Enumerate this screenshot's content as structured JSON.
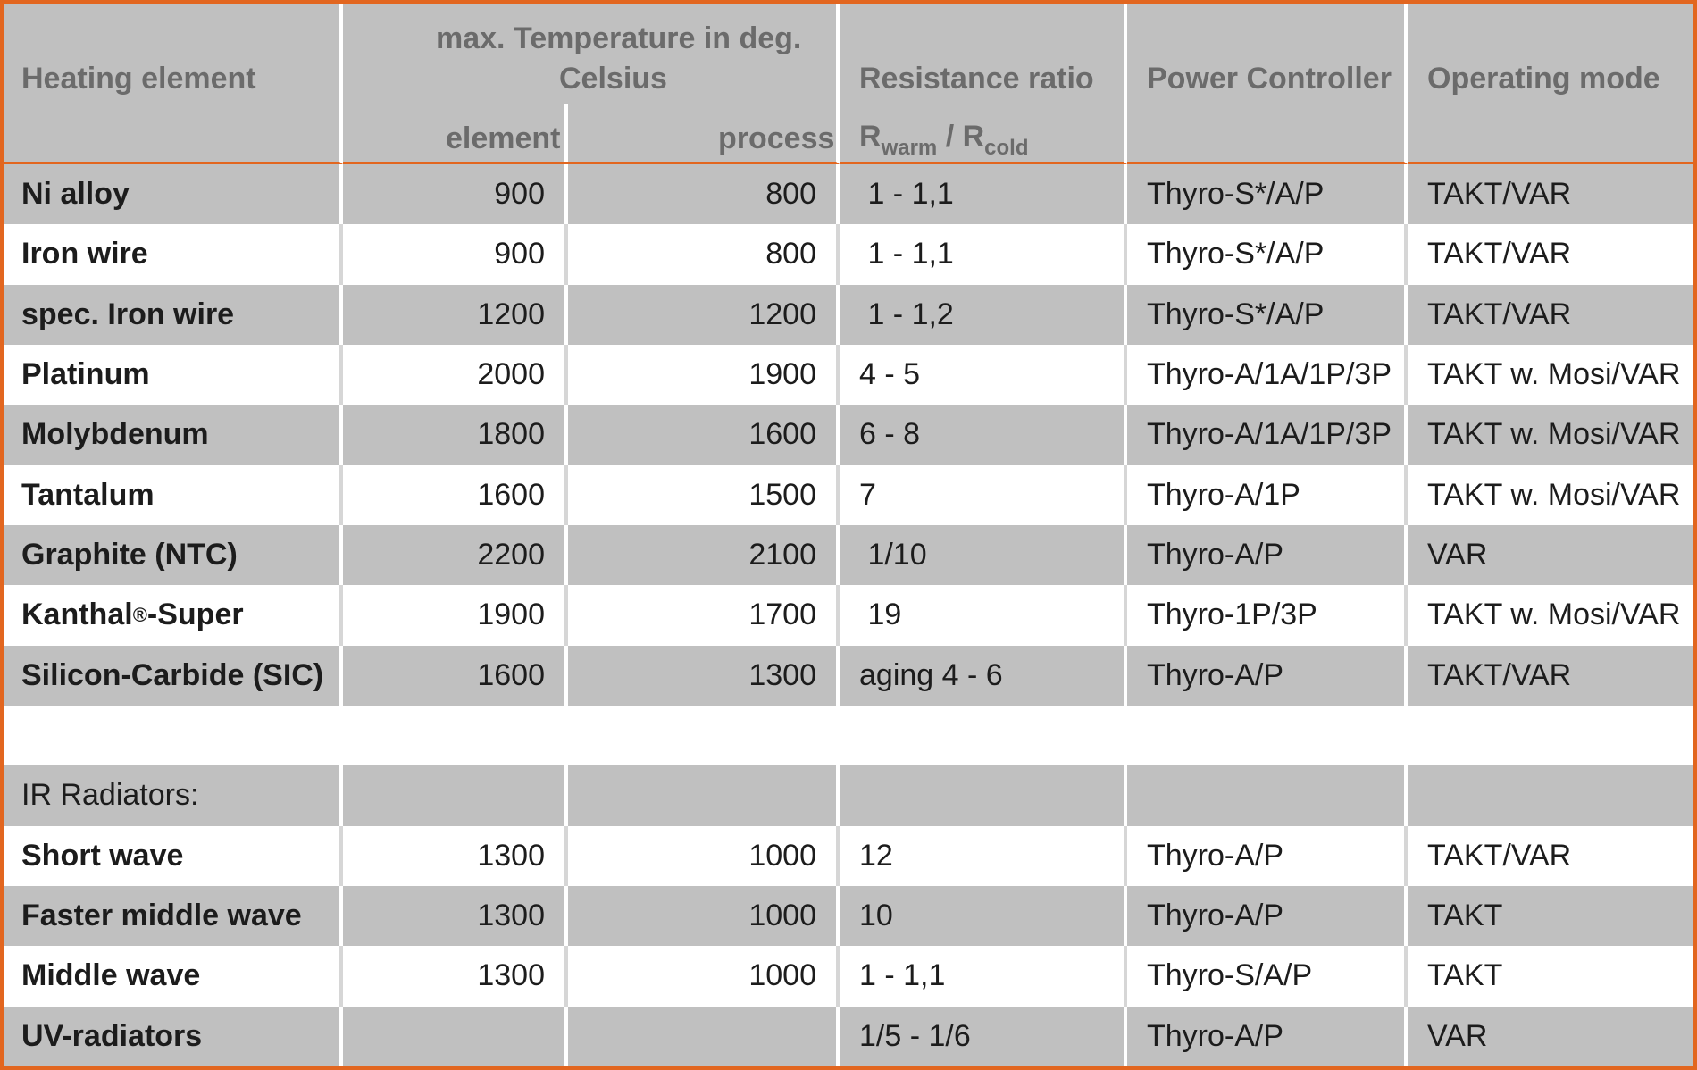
{
  "header": {
    "heating_element": "Heating element",
    "max_temp_line1": "max. Temperature in deg.",
    "max_temp_line2": "Celsius",
    "element": "element",
    "process": "process",
    "resistance_ratio": "Resistance ratio",
    "r_main_1": "R",
    "r_sub_1": "warm",
    "r_sep": " / R",
    "r_sub_2": "cold",
    "power_controller": "Power Controller",
    "operating_mode": "Operating mode"
  },
  "rows": [
    {
      "name": "Ni alloy",
      "element": "900",
      "process": "800",
      "ratio": " 1 - 1,1",
      "controller": "Thyro-S*/A/P",
      "mode": "TAKT/VAR"
    },
    {
      "name": "Iron wire",
      "element": "900",
      "process": "800",
      "ratio": " 1 - 1,1",
      "controller": "Thyro-S*/A/P",
      "mode": "TAKT/VAR"
    },
    {
      "name": "spec. Iron wire",
      "element": "1200",
      "process": "1200",
      "ratio": " 1 - 1,2",
      "controller": "Thyro-S*/A/P",
      "mode": "TAKT/VAR"
    },
    {
      "name": "Platinum",
      "element": "2000",
      "process": "1900",
      "ratio": "4 - 5",
      "controller": "Thyro-A/1A/1P/3P",
      "mode": "TAKT w. Mosi/VAR"
    },
    {
      "name": "Molybdenum",
      "element": "1800",
      "process": "1600",
      "ratio": "6 - 8",
      "controller": "Thyro-A/1A/1P/3P",
      "mode": "TAKT w. Mosi/VAR"
    },
    {
      "name": "Tantalum",
      "element": "1600",
      "process": "1500",
      "ratio": "7",
      "controller": "Thyro-A/1P",
      "mode": "TAKT w. Mosi/VAR"
    },
    {
      "name": "Graphite (NTC)",
      "element": "2200",
      "process": "2100",
      "ratio": " 1/10",
      "controller": "Thyro-A/P",
      "mode": "VAR"
    },
    {
      "name_pre": "Kanthal",
      "name_sup": "®",
      "name_post": "-Super",
      "element": "1900",
      "process": "1700",
      "ratio": " 19",
      "controller": "Thyro-1P/3P",
      "mode": "TAKT w. Mosi/VAR"
    },
    {
      "name": "Silicon-Carbide (SIC)",
      "element": "1600",
      "process": "1300",
      "ratio": "aging 4 - 6",
      "controller": "Thyro-A/P",
      "mode": "TAKT/VAR"
    }
  ],
  "ir_section": {
    "label": "IR Radiators:"
  },
  "ir_rows": [
    {
      "name": "Short wave",
      "element": "1300",
      "process": "1000",
      "ratio": "12",
      "controller": "Thyro-A/P",
      "mode": "TAKT/VAR"
    },
    {
      "name": "Faster middle wave",
      "element": "1300",
      "process": "1000",
      "ratio": "10",
      "controller": "Thyro-A/P",
      "mode": "TAKT"
    },
    {
      "name": "Middle wave",
      "element": "1300",
      "process": "1000",
      "ratio": "1 - 1,1",
      "controller": "Thyro-S/A/P",
      "mode": "TAKT"
    },
    {
      "name": "UV-radiators",
      "element": "",
      "process": "",
      "ratio": "1/5 - 1/6",
      "controller": "Thyro-A/P",
      "mode": "VAR"
    }
  ],
  "colors": {
    "border": "#e2661f",
    "row_gray": "#c0c0c0",
    "row_white": "#ffffff",
    "header_text": "#6b6b6b"
  }
}
